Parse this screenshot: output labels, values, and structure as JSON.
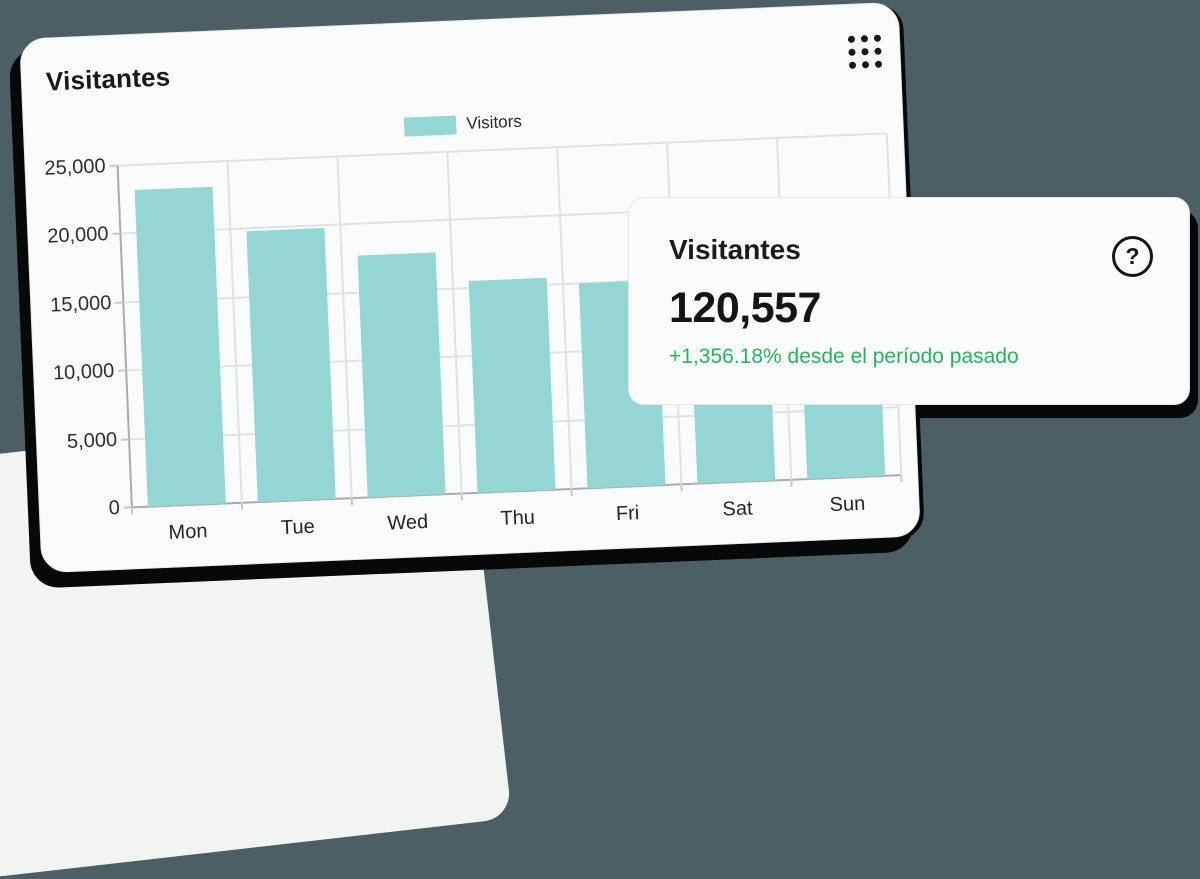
{
  "background": {
    "page_color": "#4b5f65",
    "card_color": "#fafbfc",
    "shadow_color": "#07080a",
    "wedge_color": "#f2f3f3"
  },
  "main_card": {
    "title": "Visitantes",
    "menu_icon": "grid-dots-icon",
    "legend_label": "Visitors",
    "legend_color": "#94d6d3"
  },
  "chart_data": {
    "type": "bar",
    "title": "Visitantes",
    "legend": [
      "Visitors"
    ],
    "legend_position": "top-center",
    "categories": [
      "Mon",
      "Tue",
      "Wed",
      "Thu",
      "Fri",
      "Sat",
      "Sun"
    ],
    "values": [
      23200,
      19800,
      17700,
      15500,
      15000,
      14800,
      14557
    ],
    "bar_color": "#94d6d3",
    "xlabel": "",
    "ylabel": "",
    "ylim": [
      0,
      25000
    ],
    "ytick_interval": 5000,
    "yticks": [
      0,
      5000,
      10000,
      15000,
      20000,
      25000
    ],
    "ytick_labels": [
      "0",
      "5,000",
      "10,000",
      "15,000",
      "20,000",
      "25,000"
    ],
    "grid": true
  },
  "stat_card": {
    "title": "Visitantes",
    "value": "120,557",
    "change_text": "+1,356.18% desde el período pasado",
    "change_color": "#27b45f",
    "help_glyph": "?"
  }
}
